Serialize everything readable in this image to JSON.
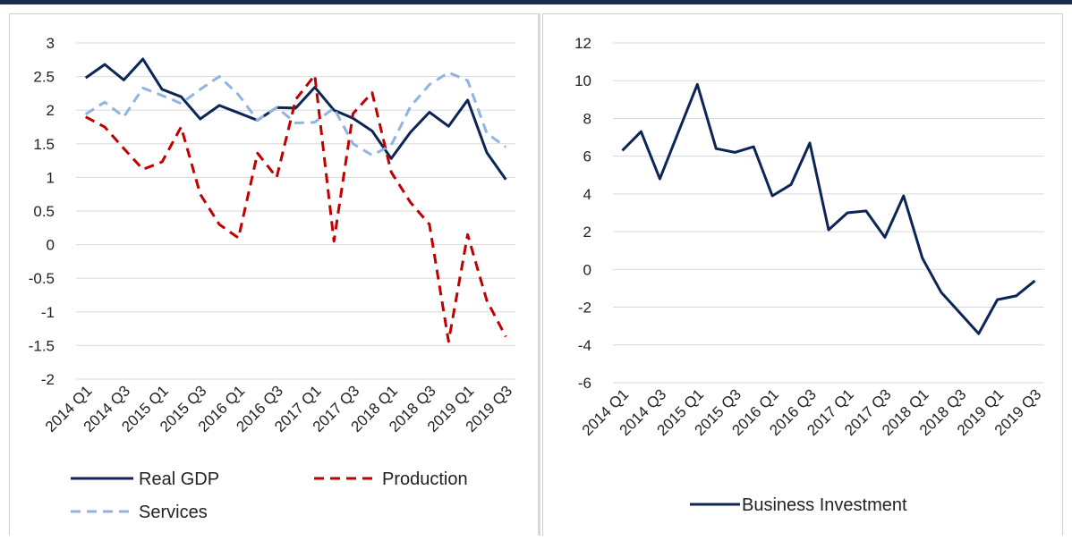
{
  "chart_data": [
    {
      "type": "line",
      "title": "",
      "xlabel": "",
      "ylabel": "",
      "ylim": [
        -2,
        3
      ],
      "yticks": [
        "3",
        "2.5",
        "2",
        "1.5",
        "1",
        "0.5",
        "0",
        "-0.5",
        "-1",
        "-1.5",
        "-2"
      ],
      "grid": "horizontal",
      "legend_position": "bottom",
      "x": [
        "2014 Q1",
        "2014 Q2",
        "2014 Q3",
        "2014 Q4",
        "2015 Q1",
        "2015 Q2",
        "2015 Q3",
        "2015 Q4",
        "2016 Q1",
        "2016 Q2",
        "2016 Q3",
        "2016 Q4",
        "2017 Q1",
        "2017 Q2",
        "2017 Q3",
        "2017 Q4",
        "2018 Q1",
        "2018 Q2",
        "2018 Q3",
        "2018 Q4",
        "2019 Q1",
        "2019 Q2",
        "2019 Q3"
      ],
      "xtick_labels": [
        "2014 Q1",
        "2014 Q3",
        "2015 Q1",
        "2015 Q3",
        "2016 Q1",
        "2016 Q3",
        "2017 Q1",
        "2017 Q3",
        "2018 Q1",
        "2018 Q3",
        "2019 Q1",
        "2019 Q3"
      ],
      "series": [
        {
          "name": "Real GDP",
          "color": "#0d2457",
          "dash": "solid",
          "values": [
            2.48,
            2.68,
            2.45,
            2.76,
            2.31,
            2.2,
            1.87,
            2.07,
            1.96,
            1.85,
            2.04,
            2.03,
            2.34,
            2.0,
            1.88,
            1.69,
            1.28,
            1.67,
            1.97,
            1.76,
            2.15,
            1.37,
            0.97
          ]
        },
        {
          "name": "Production",
          "color": "#c00000",
          "dash": "dashed",
          "values": [
            1.9,
            1.75,
            1.43,
            1.12,
            1.23,
            1.75,
            0.75,
            0.3,
            0.1,
            1.36,
            1.0,
            2.16,
            2.52,
            0.05,
            1.95,
            2.26,
            1.08,
            0.63,
            0.3,
            -1.44,
            0.15,
            -0.83,
            -1.37
          ]
        },
        {
          "name": "Services",
          "color": "#8fb4e3",
          "dash": "dashed",
          "values": [
            1.94,
            2.12,
            1.9,
            2.33,
            2.22,
            2.1,
            2.31,
            2.5,
            2.23,
            1.85,
            2.04,
            1.81,
            1.82,
            2.03,
            1.5,
            1.33,
            1.48,
            2.05,
            2.38,
            2.56,
            2.44,
            1.66,
            1.45
          ]
        }
      ]
    },
    {
      "type": "line",
      "title": "",
      "xlabel": "",
      "ylabel": "",
      "ylim": [
        -6,
        12
      ],
      "yticks": [
        "12",
        "10",
        "8",
        "6",
        "4",
        "2",
        "0",
        "-2",
        "-4",
        "-6"
      ],
      "grid": "horizontal",
      "legend_position": "bottom",
      "x": [
        "2014 Q1",
        "2014 Q2",
        "2014 Q3",
        "2014 Q4",
        "2015 Q1",
        "2015 Q2",
        "2015 Q3",
        "2015 Q4",
        "2016 Q1",
        "2016 Q2",
        "2016 Q3",
        "2016 Q4",
        "2017 Q1",
        "2017 Q2",
        "2017 Q3",
        "2017 Q4",
        "2018 Q1",
        "2018 Q2",
        "2018 Q3",
        "2018 Q4",
        "2019 Q1",
        "2019 Q2",
        "2019 Q3"
      ],
      "xtick_labels": [
        "2014 Q1",
        "2014 Q3",
        "2015 Q1",
        "2015 Q3",
        "2016 Q1",
        "2016 Q3",
        "2017 Q1",
        "2017 Q3",
        "2018 Q1",
        "2018 Q3",
        "2019 Q1",
        "2019 Q3"
      ],
      "series": [
        {
          "name": "Business Investment",
          "color": "#0d2457",
          "dash": "solid",
          "values": [
            6.3,
            7.3,
            4.8,
            7.3,
            9.8,
            6.4,
            6.2,
            6.5,
            3.9,
            4.5,
            6.7,
            2.1,
            3.0,
            3.1,
            1.7,
            3.9,
            0.6,
            -1.2,
            -2.3,
            -3.4,
            -1.6,
            -1.4,
            -0.6
          ]
        }
      ]
    }
  ]
}
